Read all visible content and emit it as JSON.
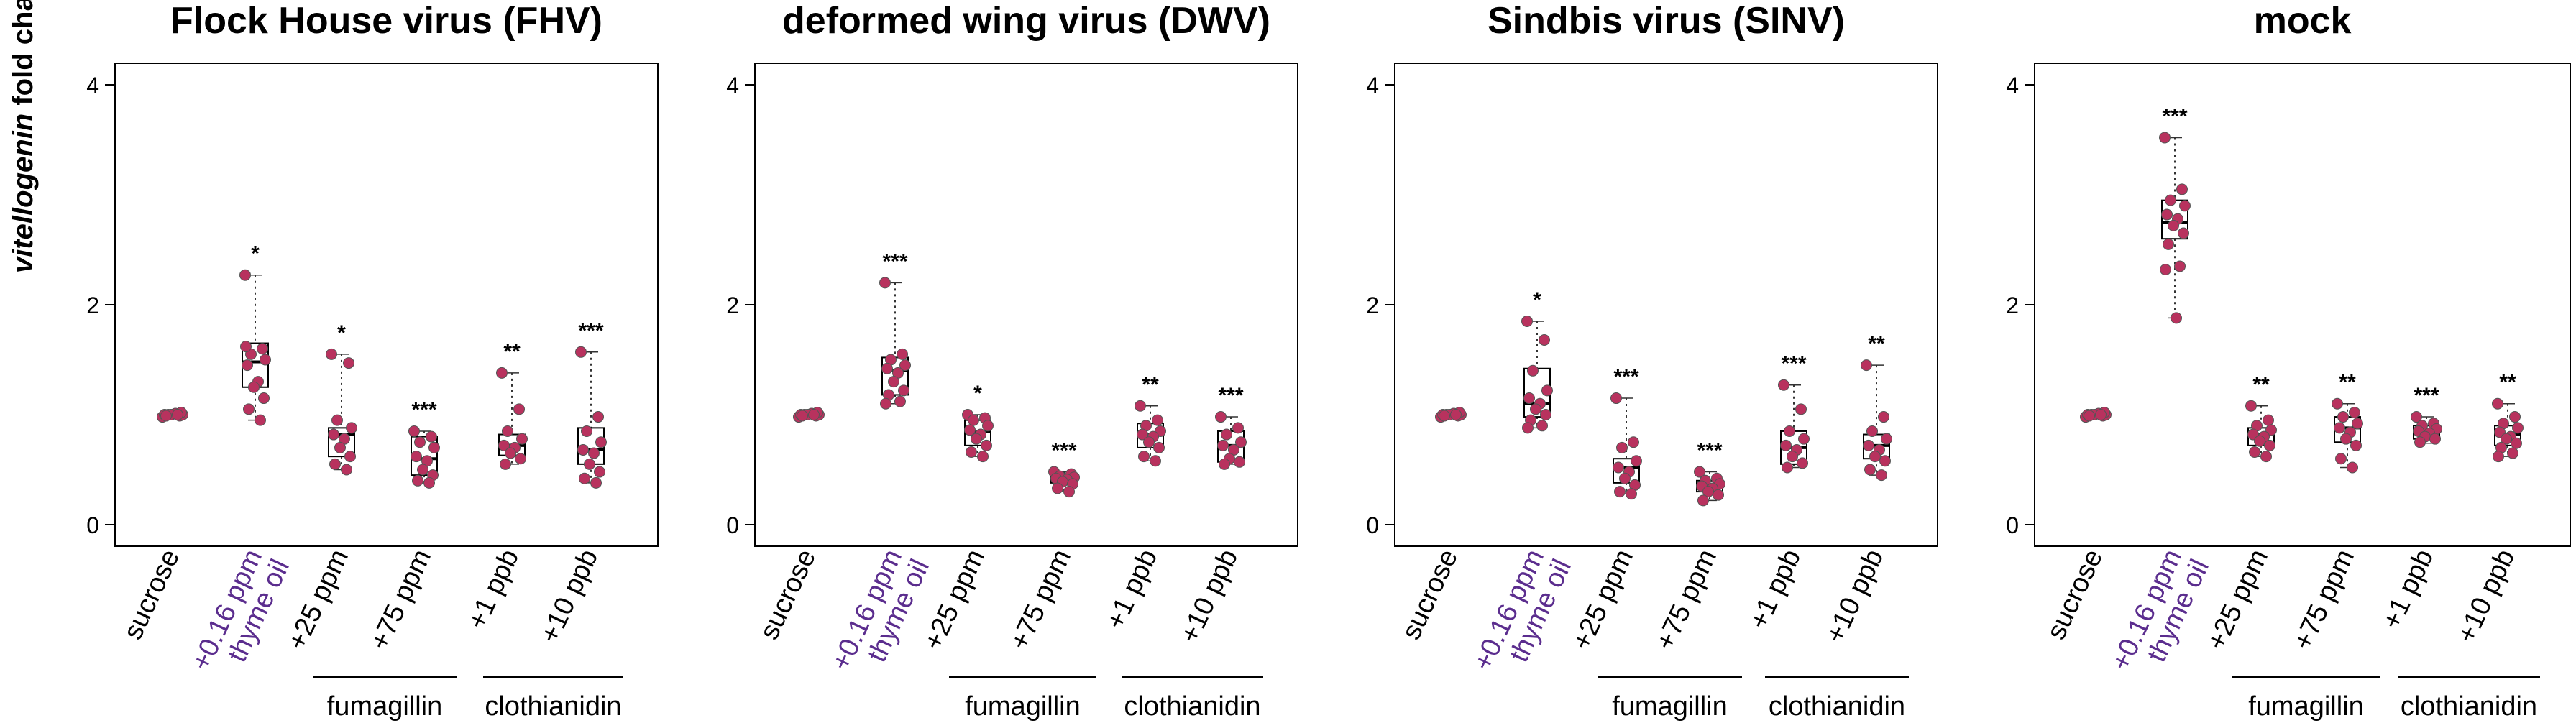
{
  "figure": {
    "y_axis_label_italic": "vitellogenin",
    "y_axis_label_rest": " fold change",
    "tick_labels": [
      "0",
      "2",
      "4"
    ],
    "group_labels": {
      "fumagillin": "fumagillin",
      "clothianidin": "clothianidin"
    }
  },
  "chart_data": [
    {
      "type": "box",
      "title": "Flock House virus (FHV)",
      "ylim": [
        0,
        4
      ],
      "yticks": [
        0,
        2,
        4
      ],
      "categories": [
        {
          "label": "sucrose",
          "label_line2": "",
          "color": "#000000",
          "median": 1.0,
          "q1": 0.99,
          "q3": 1.01,
          "whisker_low": 0.98,
          "whisker_high": 1.02,
          "sig": "",
          "points": [
            0.98,
            0.99,
            1.0,
            1.0,
            1.0,
            1.01,
            1.0,
            1.02,
            0.99,
            1.0
          ]
        },
        {
          "label": "+0.16 ppm",
          "label_line2": "thyme oil",
          "color": "#5b2d8e",
          "median": 1.48,
          "q1": 1.25,
          "q3": 1.65,
          "whisker_low": 0.95,
          "whisker_high": 2.27,
          "sig": "*",
          "points": [
            2.27,
            1.6,
            1.55,
            1.5,
            1.45,
            1.3,
            1.25,
            1.15,
            1.05,
            0.95,
            1.62
          ]
        },
        {
          "label": "+25 ppm",
          "label_line2": "",
          "color": "#000000",
          "median": 0.82,
          "q1": 0.62,
          "q3": 0.88,
          "whisker_low": 0.5,
          "whisker_high": 1.55,
          "sig": "*",
          "points": [
            1.55,
            1.47,
            0.95,
            0.88,
            0.82,
            0.78,
            0.7,
            0.62,
            0.55,
            0.5
          ]
        },
        {
          "label": "+75 ppm",
          "label_line2": "",
          "color": "#000000",
          "median": 0.6,
          "q1": 0.45,
          "q3": 0.8,
          "whisker_low": 0.38,
          "whisker_high": 0.85,
          "sig": "***",
          "points": [
            0.85,
            0.8,
            0.75,
            0.7,
            0.62,
            0.58,
            0.5,
            0.45,
            0.4,
            0.38
          ]
        },
        {
          "label": "+1 ppb",
          "label_line2": "",
          "color": "#000000",
          "median": 0.72,
          "q1": 0.63,
          "q3": 0.82,
          "whisker_low": 0.55,
          "whisker_high": 1.38,
          "sig": "**",
          "points": [
            1.38,
            1.05,
            0.85,
            0.78,
            0.72,
            0.7,
            0.65,
            0.6,
            0.55
          ]
        },
        {
          "label": "+10 ppb",
          "label_line2": "",
          "color": "#000000",
          "median": 0.68,
          "q1": 0.55,
          "q3": 0.88,
          "whisker_low": 0.38,
          "whisker_high": 1.57,
          "sig": "***",
          "points": [
            1.57,
            0.98,
            0.85,
            0.75,
            0.68,
            0.65,
            0.55,
            0.48,
            0.42,
            0.38
          ]
        }
      ]
    },
    {
      "type": "box",
      "title": "deformed wing virus (DWV)",
      "ylim": [
        0,
        4
      ],
      "yticks": [
        0,
        2,
        4
      ],
      "categories": [
        {
          "label": "sucrose",
          "label_line2": "",
          "color": "#000000",
          "median": 1.0,
          "q1": 0.99,
          "q3": 1.01,
          "whisker_low": 0.98,
          "whisker_high": 1.02,
          "sig": "",
          "points": [
            0.98,
            0.99,
            1.0,
            1.0,
            1.0,
            1.01,
            1.0,
            1.02,
            0.99,
            1.0
          ]
        },
        {
          "label": "+0.16 ppm",
          "label_line2": "thyme oil",
          "color": "#5b2d8e",
          "median": 1.4,
          "q1": 1.18,
          "q3": 1.52,
          "whisker_low": 1.1,
          "whisker_high": 2.2,
          "sig": "***",
          "points": [
            2.2,
            1.55,
            1.5,
            1.45,
            1.42,
            1.38,
            1.3,
            1.22,
            1.18,
            1.12,
            1.1
          ]
        },
        {
          "label": "+25 ppm",
          "label_line2": "",
          "color": "#000000",
          "median": 0.85,
          "q1": 0.72,
          "q3": 0.95,
          "whisker_low": 0.62,
          "whisker_high": 1.0,
          "sig": "*",
          "points": [
            1.0,
            0.97,
            0.95,
            0.9,
            0.86,
            0.82,
            0.78,
            0.72,
            0.66,
            0.62
          ]
        },
        {
          "label": "+75 ppm",
          "label_line2": "",
          "color": "#000000",
          "median": 0.42,
          "q1": 0.38,
          "q3": 0.46,
          "whisker_low": 0.3,
          "whisker_high": 0.48,
          "sig": "***",
          "points": [
            0.48,
            0.46,
            0.44,
            0.43,
            0.42,
            0.41,
            0.39,
            0.37,
            0.33,
            0.3
          ]
        },
        {
          "label": "+1 ppb",
          "label_line2": "",
          "color": "#000000",
          "median": 0.82,
          "q1": 0.7,
          "q3": 0.92,
          "whisker_low": 0.58,
          "whisker_high": 1.08,
          "sig": "**",
          "points": [
            1.08,
            0.95,
            0.9,
            0.85,
            0.82,
            0.8,
            0.75,
            0.7,
            0.62,
            0.58
          ]
        },
        {
          "label": "+10 ppb",
          "label_line2": "",
          "color": "#000000",
          "median": 0.72,
          "q1": 0.57,
          "q3": 0.85,
          "whisker_low": 0.55,
          "whisker_high": 0.98,
          "sig": "***",
          "points": [
            0.98,
            0.88,
            0.82,
            0.75,
            0.72,
            0.68,
            0.6,
            0.57,
            0.55
          ]
        }
      ]
    },
    {
      "type": "box",
      "title": "Sindbis virus (SINV)",
      "ylim": [
        0,
        4
      ],
      "yticks": [
        0,
        2,
        4
      ],
      "categories": [
        {
          "label": "sucrose",
          "label_line2": "",
          "color": "#000000",
          "median": 1.0,
          "q1": 0.99,
          "q3": 1.01,
          "whisker_low": 0.98,
          "whisker_high": 1.02,
          "sig": "",
          "points": [
            0.98,
            0.99,
            1.0,
            1.0,
            1.0,
            1.01,
            1.0,
            1.02,
            0.99,
            1.0
          ]
        },
        {
          "label": "+0.16 ppm",
          "label_line2": "thyme oil",
          "color": "#5b2d8e",
          "median": 1.1,
          "q1": 0.98,
          "q3": 1.42,
          "whisker_low": 0.88,
          "whisker_high": 1.85,
          "sig": "*",
          "points": [
            1.85,
            1.68,
            1.4,
            1.22,
            1.15,
            1.1,
            1.05,
            1.0,
            0.95,
            0.9,
            0.88
          ]
        },
        {
          "label": "+25 ppm",
          "label_line2": "",
          "color": "#000000",
          "median": 0.52,
          "q1": 0.38,
          "q3": 0.6,
          "whisker_low": 0.28,
          "whisker_high": 1.15,
          "sig": "***",
          "points": [
            1.15,
            0.75,
            0.7,
            0.58,
            0.52,
            0.48,
            0.42,
            0.36,
            0.3,
            0.28
          ]
        },
        {
          "label": "+75 ppm",
          "label_line2": "",
          "color": "#000000",
          "median": 0.35,
          "q1": 0.3,
          "q3": 0.4,
          "whisker_low": 0.22,
          "whisker_high": 0.48,
          "sig": "***",
          "points": [
            0.48,
            0.42,
            0.4,
            0.37,
            0.35,
            0.33,
            0.3,
            0.27,
            0.22
          ]
        },
        {
          "label": "+1 ppb",
          "label_line2": "",
          "color": "#000000",
          "median": 0.7,
          "q1": 0.55,
          "q3": 0.85,
          "whisker_low": 0.52,
          "whisker_high": 1.27,
          "sig": "***",
          "points": [
            1.27,
            1.05,
            0.85,
            0.78,
            0.72,
            0.68,
            0.62,
            0.56,
            0.52
          ]
        },
        {
          "label": "+10 ppb",
          "label_line2": "",
          "color": "#000000",
          "median": 0.72,
          "q1": 0.6,
          "q3": 0.82,
          "whisker_low": 0.45,
          "whisker_high": 1.45,
          "sig": "**",
          "points": [
            1.45,
            0.98,
            0.85,
            0.78,
            0.72,
            0.68,
            0.62,
            0.58,
            0.5,
            0.45
          ]
        }
      ]
    },
    {
      "type": "box",
      "title": "mock",
      "ylim": [
        0,
        4
      ],
      "yticks": [
        0,
        2,
        4
      ],
      "categories": [
        {
          "label": "sucrose",
          "label_line2": "",
          "color": "#000000",
          "median": 1.0,
          "q1": 0.99,
          "q3": 1.01,
          "whisker_low": 0.98,
          "whisker_high": 1.02,
          "sig": "",
          "points": [
            0.98,
            0.99,
            1.0,
            1.0,
            1.0,
            1.01,
            1.0,
            1.02,
            0.99,
            1.0
          ]
        },
        {
          "label": "+0.16 ppm",
          "label_line2": "thyme oil",
          "color": "#5b2d8e",
          "median": 2.75,
          "q1": 2.6,
          "q3": 2.95,
          "whisker_low": 1.88,
          "whisker_high": 3.52,
          "sig": "***",
          "points": [
            3.52,
            3.05,
            2.95,
            2.9,
            2.82,
            2.78,
            2.72,
            2.65,
            2.55,
            2.35,
            2.32,
            1.88
          ]
        },
        {
          "label": "+25 ppm",
          "label_line2": "",
          "color": "#000000",
          "median": 0.82,
          "q1": 0.72,
          "q3": 0.88,
          "whisker_low": 0.62,
          "whisker_high": 1.08,
          "sig": "**",
          "points": [
            1.08,
            0.95,
            0.9,
            0.86,
            0.82,
            0.8,
            0.76,
            0.72,
            0.66,
            0.62
          ]
        },
        {
          "label": "+75 ppm",
          "label_line2": "",
          "color": "#000000",
          "median": 0.88,
          "q1": 0.75,
          "q3": 0.98,
          "whisker_low": 0.52,
          "whisker_high": 1.1,
          "sig": "**",
          "points": [
            1.1,
            1.02,
            0.98,
            0.92,
            0.88,
            0.84,
            0.78,
            0.72,
            0.6,
            0.52
          ]
        },
        {
          "label": "+1 ppb",
          "label_line2": "",
          "color": "#000000",
          "median": 0.85,
          "q1": 0.78,
          "q3": 0.9,
          "whisker_low": 0.74,
          "whisker_high": 0.98,
          "sig": "***",
          "points": [
            0.98,
            0.92,
            0.9,
            0.87,
            0.85,
            0.83,
            0.8,
            0.78,
            0.75
          ]
        },
        {
          "label": "+10 ppb",
          "label_line2": "",
          "color": "#000000",
          "median": 0.82,
          "q1": 0.72,
          "q3": 0.9,
          "whisker_low": 0.62,
          "whisker_high": 1.1,
          "sig": "**",
          "points": [
            1.1,
            0.98,
            0.92,
            0.88,
            0.84,
            0.8,
            0.78,
            0.74,
            0.7,
            0.65,
            0.62
          ]
        }
      ]
    }
  ]
}
